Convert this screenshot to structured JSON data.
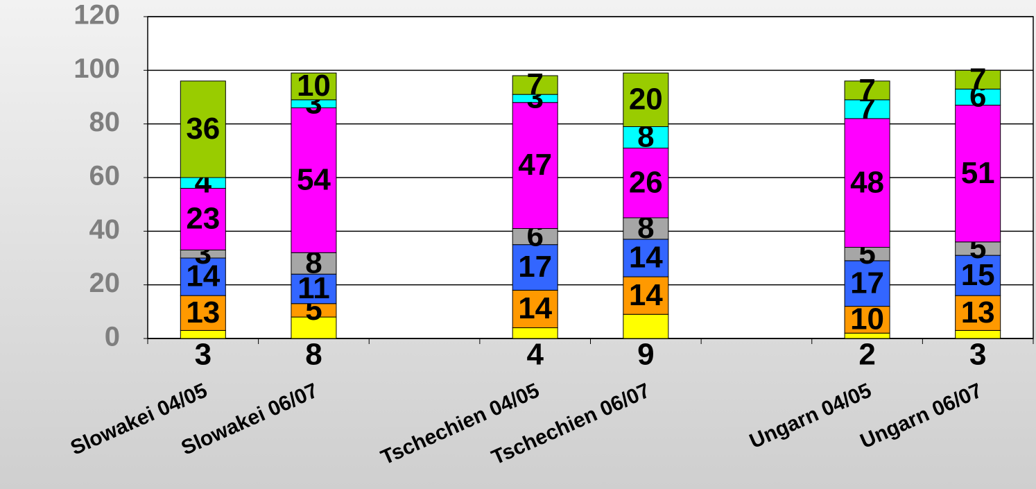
{
  "chart_data": {
    "type": "stacked_bar",
    "categories": [
      "Slowakei 04/05",
      "Slowakei 06/07",
      null,
      "Tschechien 04/05",
      "Tschechien 06/07",
      null,
      "Ungarn 04/05",
      "Ungarn 06/07"
    ],
    "series": [
      {
        "color": "#ffff00",
        "values": [
          3,
          8,
          null,
          4,
          9,
          null,
          2,
          3
        ]
      },
      {
        "color": "#ff9900",
        "values": [
          13,
          5,
          null,
          14,
          14,
          null,
          10,
          13
        ]
      },
      {
        "color": "#3366ff",
        "values": [
          14,
          11,
          null,
          17,
          14,
          null,
          17,
          15
        ]
      },
      {
        "color": "#a6a6a6",
        "values": [
          3,
          8,
          null,
          6,
          8,
          null,
          5,
          5
        ]
      },
      {
        "color": "#ff00ff",
        "values": [
          23,
          54,
          null,
          47,
          26,
          null,
          48,
          51
        ]
      },
      {
        "color": "#00ffff",
        "values": [
          4,
          3,
          null,
          3,
          8,
          null,
          7,
          6
        ]
      },
      {
        "color": "#99cc00",
        "values": [
          36,
          10,
          null,
          7,
          20,
          null,
          7,
          7
        ]
      }
    ],
    "ylim": [
      0,
      120
    ],
    "yticks": [
      0,
      20,
      40,
      60,
      80,
      100,
      120
    ],
    "grid": true
  }
}
